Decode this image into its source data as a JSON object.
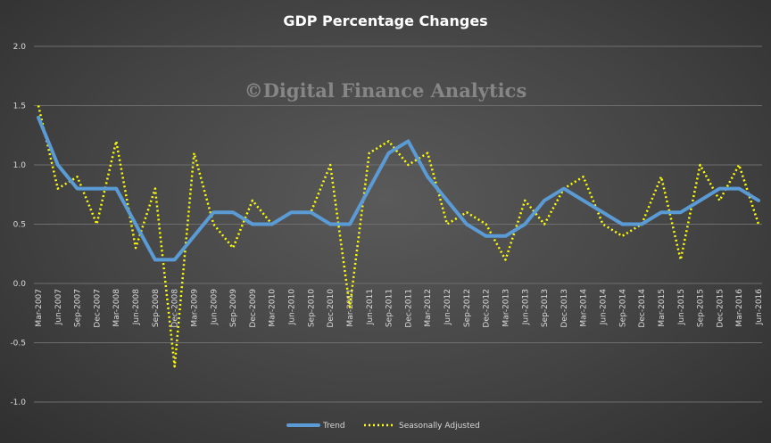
{
  "chart_data": {
    "type": "line",
    "title": "GDP Percentage Changes",
    "watermark": "©Digital Finance Analytics",
    "xlabel": "",
    "ylabel": "",
    "ylim": [
      -1.0,
      2.0
    ],
    "yticks": [
      "2.0",
      "1.5",
      "1.0",
      "0.5",
      "0.0",
      "-0.5",
      "-1.0"
    ],
    "ytick_values": [
      2.0,
      1.5,
      1.0,
      0.5,
      0.0,
      -0.5,
      -1.0
    ],
    "grid": "horizontal",
    "legend_position": "bottom",
    "categories": [
      "Mar-2007",
      "Jun-2007",
      "Sep-2007",
      "Dec-2007",
      "Mar-2008",
      "Jun-2008",
      "Sep-2008",
      "Dec-2008",
      "Mar-2009",
      "Jun-2009",
      "Sep-2009",
      "Dec-2009",
      "Mar-2010",
      "Jun-2010",
      "Sep-2010",
      "Dec-2010",
      "Mar-2011",
      "Jun-2011",
      "Sep-2011",
      "Dec-2011",
      "Mar-2012",
      "Jun-2012",
      "Sep-2012",
      "Dec-2012",
      "Mar-2013",
      "Jun-2013",
      "Sep-2013",
      "Dec-2013",
      "Mar-2014",
      "Jun-2014",
      "Sep-2014",
      "Dec-2014",
      "Mar-2015",
      "Jun-2015",
      "Sep-2015",
      "Dec-2015",
      "Mar-2016",
      "Jun-2016"
    ],
    "x": [
      "Mar-2007",
      "Jun-2007",
      "Sep-2007",
      "Dec-2007",
      "Mar-2008",
      "Jun-2008",
      "Sep-2008",
      "Dec-2008",
      "Mar-2009",
      "Jun-2009",
      "Sep-2009",
      "Dec-2009",
      "Mar-2010",
      "Jun-2010",
      "Sep-2010",
      "Dec-2010",
      "Mar-2011",
      "Jun-2011",
      "Sep-2011",
      "Dec-2011",
      "Mar-2012",
      "Jun-2012",
      "Sep-2012",
      "Dec-2012",
      "Mar-2013",
      "Jun-2013",
      "Sep-2013",
      "Dec-2013",
      "Mar-2014",
      "Jun-2014",
      "Sep-2014",
      "Dec-2014",
      "Mar-2015",
      "Jun-2015",
      "Sep-2015",
      "Dec-2015",
      "Mar-2016",
      "Jun-2016"
    ],
    "series": [
      {
        "name": "Trend",
        "color": "#5b9bd5",
        "style": "solid",
        "values": [
          1.4,
          1.0,
          0.8,
          0.8,
          0.8,
          0.5,
          0.2,
          0.2,
          0.4,
          0.6,
          0.6,
          0.5,
          0.5,
          0.6,
          0.6,
          0.5,
          0.5,
          0.8,
          1.1,
          1.2,
          0.9,
          0.7,
          0.5,
          0.4,
          0.4,
          0.5,
          0.7,
          0.8,
          0.7,
          0.6,
          0.5,
          0.5,
          0.6,
          0.6,
          0.7,
          0.8,
          0.8,
          0.7
        ]
      },
      {
        "name": "Seasonally Adjusted",
        "color": "#ffff00",
        "style": "dotted",
        "values": [
          1.5,
          0.8,
          0.9,
          0.5,
          1.2,
          0.3,
          0.8,
          -0.7,
          1.1,
          0.5,
          0.3,
          0.7,
          0.5,
          0.6,
          0.6,
          1.0,
          -0.2,
          1.1,
          1.2,
          1.0,
          1.1,
          0.5,
          0.6,
          0.5,
          0.2,
          0.7,
          0.5,
          0.8,
          0.9,
          0.5,
          0.4,
          0.5,
          0.9,
          0.2,
          1.0,
          0.7,
          1.0,
          0.5
        ]
      }
    ]
  }
}
